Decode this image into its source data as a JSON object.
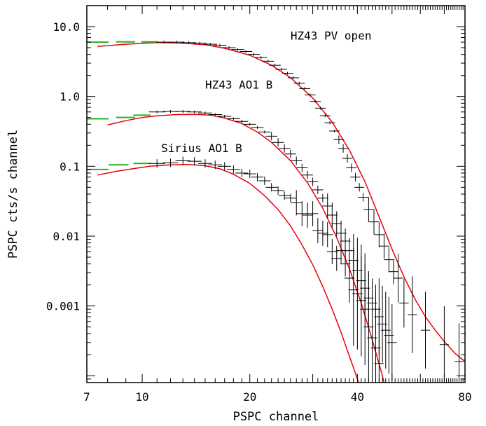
{
  "chart_data": {
    "type": "scatter",
    "title": "",
    "xlabel": "PSPC channel",
    "ylabel": "PSPC cts/s channel",
    "xscale": "log",
    "yscale": "log",
    "xlim": [
      7,
      80
    ],
    "ylim": [
      8e-05,
      20
    ],
    "grid": false,
    "legend": "none",
    "colors": {
      "data": "#000000",
      "model": "#e8000b",
      "low_channel": "#22b322"
    },
    "x_ticks": [
      {
        "value": 7,
        "label": "7"
      },
      {
        "value": 10,
        "label": "10"
      },
      {
        "value": 20,
        "label": "20"
      },
      {
        "value": 40,
        "label": "40"
      },
      {
        "value": 80,
        "label": "80"
      }
    ],
    "y_ticks": [
      {
        "value": 10,
        "label": "10.0"
      },
      {
        "value": 1,
        "label": "1.0"
      },
      {
        "value": 0.1,
        "label": "0.1"
      },
      {
        "value": 0.01,
        "label": "0.01"
      },
      {
        "value": 0.001,
        "label": "0.001"
      }
    ],
    "annotations": [
      {
        "text": "HZ43 PV open",
        "x": 26,
        "y": 6.5
      },
      {
        "text": "HZ43 AO1 B",
        "x": 15,
        "y": 1.3
      },
      {
        "text": "Sirius AO1 B",
        "x": 11.3,
        "y": 0.16
      }
    ],
    "series": [
      {
        "name": "HZ43 PV open",
        "model": [
          [
            7.5,
            5.2
          ],
          [
            9,
            5.6
          ],
          [
            11,
            5.9
          ],
          [
            13,
            5.8
          ],
          [
            15,
            5.5
          ],
          [
            17,
            4.9
          ],
          [
            20,
            3.9
          ],
          [
            23,
            2.8
          ],
          [
            26,
            1.85
          ],
          [
            30,
            0.95
          ],
          [
            34,
            0.43
          ],
          [
            38,
            0.17
          ],
          [
            42,
            0.06
          ],
          [
            46,
            0.019
          ],
          [
            50,
            0.0065
          ],
          [
            54,
            0.0026
          ],
          [
            58,
            0.00125
          ],
          [
            62,
            0.0007
          ],
          [
            66,
            0.00045
          ],
          [
            70,
            0.00031
          ],
          [
            75,
            0.00021
          ],
          [
            80,
            0.00016
          ]
        ],
        "green": [
          [
            7.5,
            6.0
          ],
          [
            9,
            6.05
          ],
          [
            10.5,
            6.05
          ]
        ],
        "data": [
          [
            11.5,
            6.0
          ],
          [
            12.5,
            6.0
          ],
          [
            13.5,
            5.9
          ],
          [
            14.5,
            5.8
          ],
          [
            15.5,
            5.6
          ],
          [
            16.5,
            5.4
          ],
          [
            17.5,
            5.0
          ],
          [
            18.5,
            4.7
          ],
          [
            19.5,
            4.4
          ],
          [
            20.5,
            4.0
          ],
          [
            21.5,
            3.6
          ],
          [
            22.5,
            3.2
          ],
          [
            23.5,
            2.8
          ],
          [
            24.5,
            2.45
          ],
          [
            25.5,
            2.15
          ],
          [
            26.5,
            1.85
          ],
          [
            27.5,
            1.55
          ],
          [
            28.5,
            1.3
          ],
          [
            29.5,
            1.05
          ],
          [
            30.5,
            0.85
          ],
          [
            31.5,
            0.68
          ],
          [
            32.5,
            0.53
          ],
          [
            33.5,
            0.42
          ],
          [
            34.5,
            0.32
          ],
          [
            35.5,
            0.24
          ],
          [
            36.5,
            0.18
          ],
          [
            37.5,
            0.13
          ],
          [
            38.5,
            0.095
          ],
          [
            39.5,
            0.07
          ],
          [
            40.5,
            0.05
          ],
          [
            41.5,
            0.036
          ],
          [
            43,
            0.024
          ],
          [
            44.5,
            0.016
          ],
          [
            46,
            0.0105
          ],
          [
            47.5,
            0.0072
          ],
          [
            49,
            0.0046
          ],
          [
            50.5,
            0.0031
          ],
          [
            52,
            0.0025
          ],
          [
            54,
            0.0011
          ],
          [
            57,
            0.00075
          ],
          [
            62,
            0.00045
          ],
          [
            70,
            0.00028
          ],
          [
            77,
            0.00016
          ]
        ]
      },
      {
        "name": "HZ43 AO1 B",
        "model": [
          [
            8,
            0.39
          ],
          [
            9,
            0.45
          ],
          [
            10,
            0.5
          ],
          [
            11,
            0.53
          ],
          [
            12.5,
            0.55
          ],
          [
            14,
            0.555
          ],
          [
            15.5,
            0.54
          ],
          [
            17,
            0.49
          ],
          [
            19,
            0.41
          ],
          [
            21,
            0.31
          ],
          [
            23,
            0.22
          ],
          [
            26,
            0.12
          ],
          [
            29,
            0.058
          ],
          [
            32,
            0.025
          ],
          [
            35,
            0.0095
          ],
          [
            38,
            0.0034
          ],
          [
            41,
            0.0011
          ],
          [
            44,
            0.00033
          ],
          [
            47,
            0.0001
          ],
          [
            49,
            4e-05
          ]
        ],
        "green": [
          [
            7.5,
            0.48
          ],
          [
            9,
            0.5
          ],
          [
            10,
            0.54
          ]
        ],
        "data": [
          [
            11,
            0.6
          ],
          [
            12,
            0.61
          ],
          [
            13,
            0.61
          ],
          [
            14,
            0.6
          ],
          [
            15,
            0.58
          ],
          [
            16,
            0.55
          ],
          [
            17,
            0.52
          ],
          [
            18,
            0.48
          ],
          [
            19,
            0.44
          ],
          [
            20,
            0.4
          ],
          [
            21,
            0.36
          ],
          [
            22,
            0.31
          ],
          [
            23,
            0.27
          ],
          [
            24,
            0.22
          ],
          [
            25,
            0.18
          ],
          [
            26,
            0.15
          ],
          [
            27,
            0.12
          ],
          [
            28,
            0.095
          ],
          [
            29,
            0.075
          ],
          [
            30,
            0.06
          ],
          [
            31,
            0.046
          ],
          [
            32,
            0.035
          ],
          [
            33,
            0.027
          ],
          [
            34,
            0.02
          ],
          [
            35,
            0.015
          ],
          [
            36,
            0.011
          ],
          [
            37,
            0.0085
          ],
          [
            38,
            0.0062
          ],
          [
            39,
            0.0045
          ],
          [
            40,
            0.0032
          ],
          [
            41,
            0.0023
          ],
          [
            42,
            0.0018
          ],
          [
            43,
            0.0013
          ],
          [
            44,
            0.0011
          ],
          [
            45,
            0.0009
          ],
          [
            46,
            0.0007
          ],
          [
            47,
            0.00055
          ],
          [
            48,
            0.00045
          ],
          [
            49,
            0.00038
          ],
          [
            50,
            0.0003
          ]
        ]
      },
      {
        "name": "Sirius AO1 B",
        "model": [
          [
            7.5,
            0.075
          ],
          [
            8.5,
            0.085
          ],
          [
            9.5,
            0.093
          ],
          [
            10.5,
            0.1
          ],
          [
            12,
            0.105
          ],
          [
            13.5,
            0.106
          ],
          [
            15,
            0.102
          ],
          [
            16.5,
            0.092
          ],
          [
            18,
            0.077
          ],
          [
            20,
            0.057
          ],
          [
            22,
            0.038
          ],
          [
            24,
            0.024
          ],
          [
            26,
            0.014
          ],
          [
            28,
            0.0075
          ],
          [
            30,
            0.0039
          ],
          [
            32,
            0.0019
          ],
          [
            34,
            0.0009
          ],
          [
            36,
            0.00042
          ],
          [
            38,
            0.00019
          ],
          [
            40,
            9e-05
          ],
          [
            42,
            4e-05
          ]
        ],
        "green": [
          [
            7.5,
            0.09
          ],
          [
            8.6,
            0.105
          ],
          [
            10,
            0.11
          ]
        ],
        "data": [
          [
            11,
            0.11
          ],
          [
            12,
            0.112
          ],
          [
            13,
            0.12
          ],
          [
            14,
            0.118
          ],
          [
            15,
            0.11
          ],
          [
            16,
            0.105
          ],
          [
            17,
            0.1
          ],
          [
            18,
            0.09
          ],
          [
            19,
            0.08
          ],
          [
            20,
            0.078
          ],
          [
            21,
            0.07
          ],
          [
            22,
            0.062
          ],
          [
            23,
            0.05
          ],
          [
            24,
            0.045
          ],
          [
            25,
            0.038
          ],
          [
            26,
            0.035
          ],
          [
            27,
            0.03
          ],
          [
            28,
            0.021
          ],
          [
            29,
            0.02
          ],
          [
            30,
            0.021
          ],
          [
            31,
            0.012
          ],
          [
            32,
            0.011
          ],
          [
            33,
            0.0105
          ],
          [
            34,
            0.006
          ],
          [
            35,
            0.0048
          ],
          [
            36,
            0.0062
          ],
          [
            37,
            0.004
          ],
          [
            38,
            0.0025
          ],
          [
            39,
            0.0017
          ],
          [
            40,
            0.0015
          ],
          [
            41,
            0.0012
          ],
          [
            42,
            0.0009
          ],
          [
            43,
            0.0005
          ],
          [
            44,
            0.00035
          ],
          [
            45,
            0.00025
          ],
          [
            46,
            0.00015
          ]
        ]
      }
    ]
  }
}
